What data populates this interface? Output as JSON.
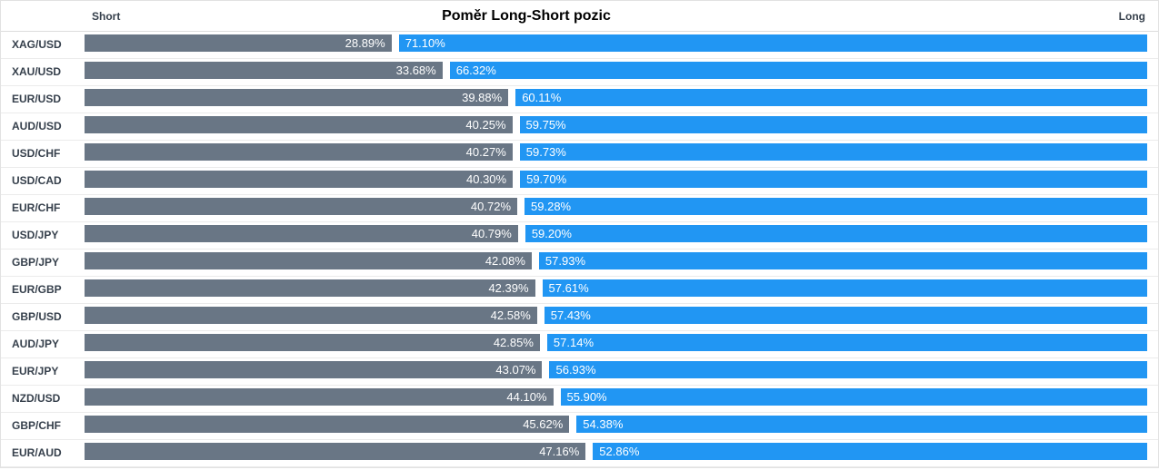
{
  "header": {
    "short_label": "Short",
    "long_label": "Long",
    "title": "Poměr Long-Short pozic"
  },
  "chart_data": {
    "type": "bar",
    "variant": "horizontal-stacked-100pct",
    "title": "Poměr Long-Short pozic",
    "column_headers": [
      "Short",
      "Long"
    ],
    "unit": "%",
    "axis_range": [
      0,
      100
    ],
    "grid": false,
    "legend_position": "column-headers-top",
    "categories": [
      "XAG/USD",
      "XAU/USD",
      "EUR/USD",
      "AUD/USD",
      "USD/CHF",
      "USD/CAD",
      "EUR/CHF",
      "USD/JPY",
      "GBP/JPY",
      "EUR/GBP",
      "GBP/USD",
      "AUD/JPY",
      "EUR/JPY",
      "NZD/USD",
      "GBP/CHF",
      "EUR/AUD"
    ],
    "series": [
      {
        "name": "Short",
        "color": "#697685",
        "values": [
          28.89,
          33.68,
          39.88,
          40.25,
          40.27,
          40.3,
          40.72,
          40.79,
          42.08,
          42.39,
          42.58,
          42.85,
          43.07,
          44.1,
          45.62,
          47.16
        ]
      },
      {
        "name": "Long",
        "color": "#2196f3",
        "values": [
          71.1,
          66.32,
          60.11,
          59.75,
          59.73,
          59.7,
          59.28,
          59.2,
          57.93,
          57.61,
          57.43,
          57.14,
          56.93,
          55.9,
          54.38,
          52.86
        ]
      }
    ],
    "value_label_format": "0.00%"
  },
  "colors": {
    "short_bar": "#697685",
    "long_bar": "#2196f3",
    "bar_text": "#ffffff",
    "category_text": "#36404c",
    "title_text": "#000000",
    "row_divider": "#ebebeb",
    "frame_border": "#e2e2e2",
    "background": "#ffffff"
  }
}
